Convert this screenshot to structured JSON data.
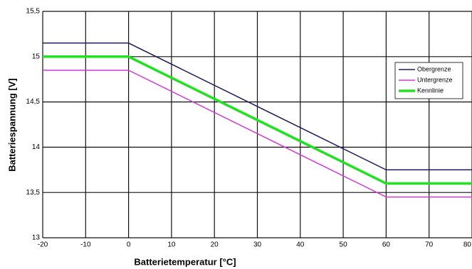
{
  "chart_data": {
    "type": "line",
    "xlabel": "Batterietemperatur [°C]",
    "ylabel": "Batteriespannung [V]",
    "x": [
      -20,
      0,
      60,
      80
    ],
    "series": [
      {
        "name": "Obergrenze",
        "color": "#1c1c5c",
        "width": 1.5,
        "values": [
          15.15,
          15.15,
          13.75,
          13.75
        ]
      },
      {
        "name": "Untergrenze",
        "color": "#d63ad6",
        "width": 1.5,
        "values": [
          14.85,
          14.85,
          13.45,
          13.45
        ]
      },
      {
        "name": "Kennlinie",
        "color": "#22e022",
        "width": 3.5,
        "values": [
          15,
          15,
          13.6,
          13.6
        ]
      }
    ],
    "xlim": [
      -20,
      80
    ],
    "xticks": [
      -20,
      -10,
      0,
      10,
      20,
      30,
      40,
      50,
      60,
      70,
      80
    ],
    "ylim": [
      13,
      15.5
    ],
    "yticks": [
      13,
      {
        "value": 13.5,
        "label": "13,5"
      },
      14,
      {
        "value": 14.5,
        "label": "14,5"
      },
      15,
      {
        "value": 15.5,
        "label": "15,5"
      }
    ],
    "grid": true,
    "legend": "upper right"
  }
}
